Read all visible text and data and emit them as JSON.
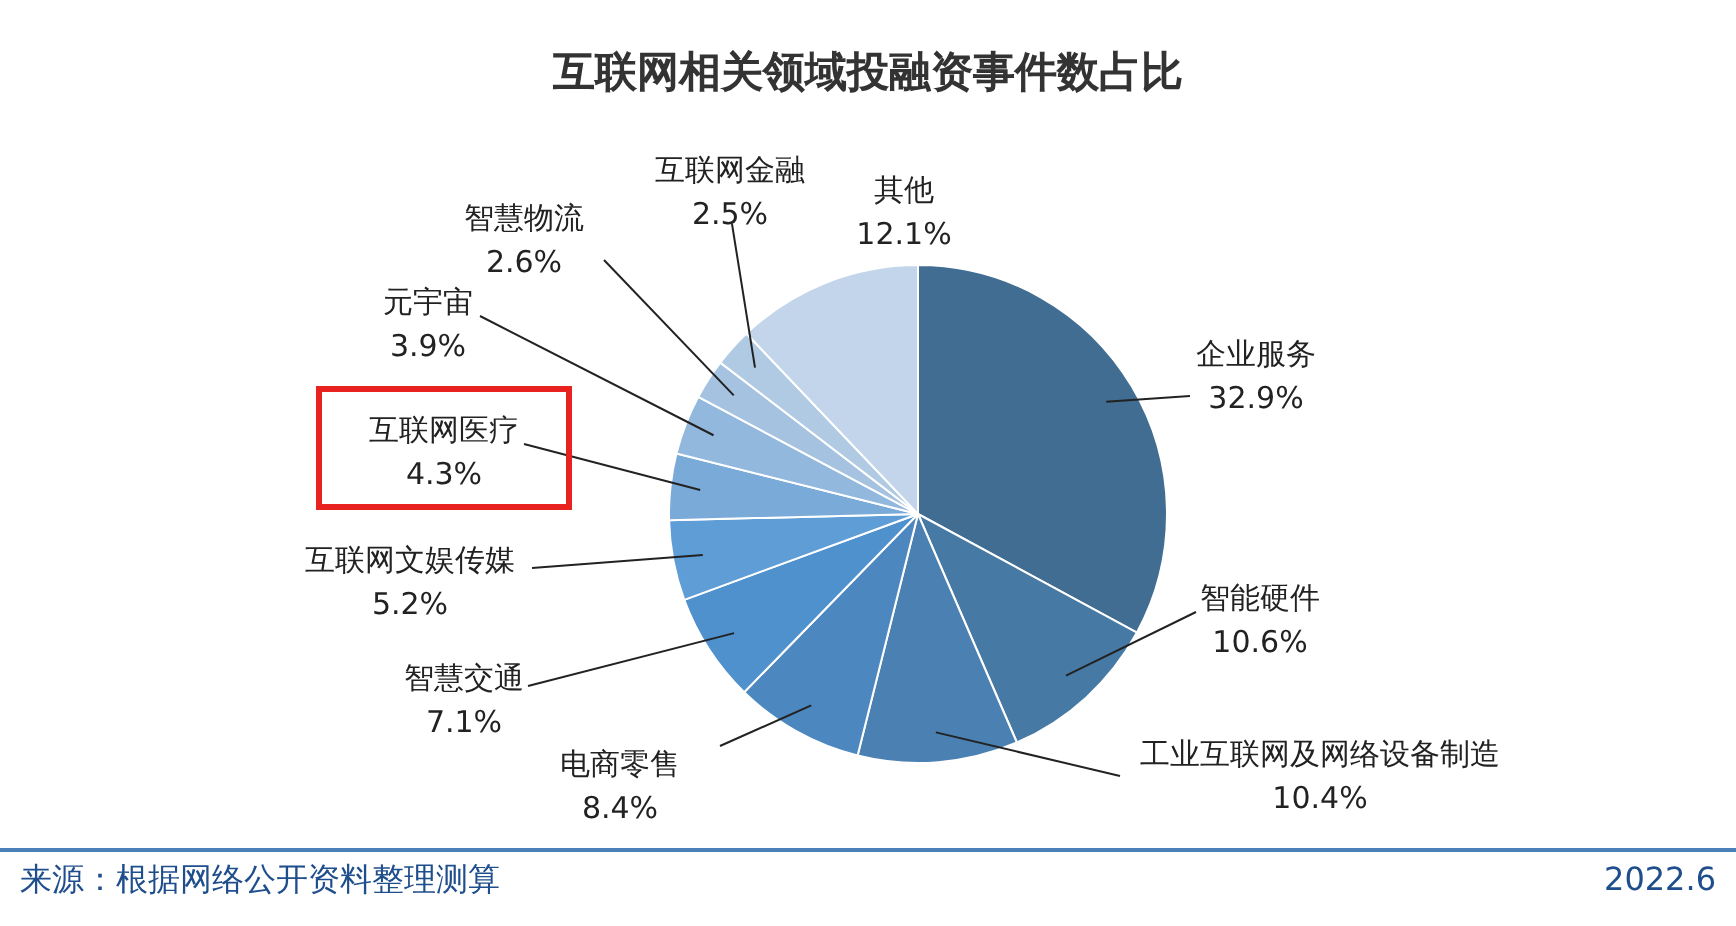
{
  "chart_data": {
    "type": "pie",
    "title": "互联网相关领域投融资事件数占比",
    "categories": [
      "企业服务",
      "智能硬件",
      "工业互联网及网络设备制造",
      "电商零售",
      "智慧交通",
      "互联网文娱传媒",
      "互联网医疗",
      "元宇宙",
      "智慧物流",
      "互联网金融",
      "其他"
    ],
    "values": [
      32.9,
      10.6,
      10.4,
      8.4,
      7.1,
      5.2,
      4.3,
      3.9,
      2.6,
      2.5,
      12.1
    ],
    "value_labels": [
      "32.9%",
      "10.6%",
      "10.4%",
      "8.4%",
      "7.1%",
      "5.2%",
      "4.3%",
      "3.9%",
      "2.6%",
      "2.5%",
      "12.1%"
    ],
    "colors": [
      "#416d92",
      "#467aa5",
      "#4a80b2",
      "#4c87bf",
      "#4f91cc",
      "#5f9dd6",
      "#7aaad8",
      "#93b8dd",
      "#a5c2e0",
      "#b1cae4",
      "#c3d5ea"
    ],
    "annotations": [
      "来源：根据网络公开资料整理测算",
      "2022.6"
    ]
  }
}
